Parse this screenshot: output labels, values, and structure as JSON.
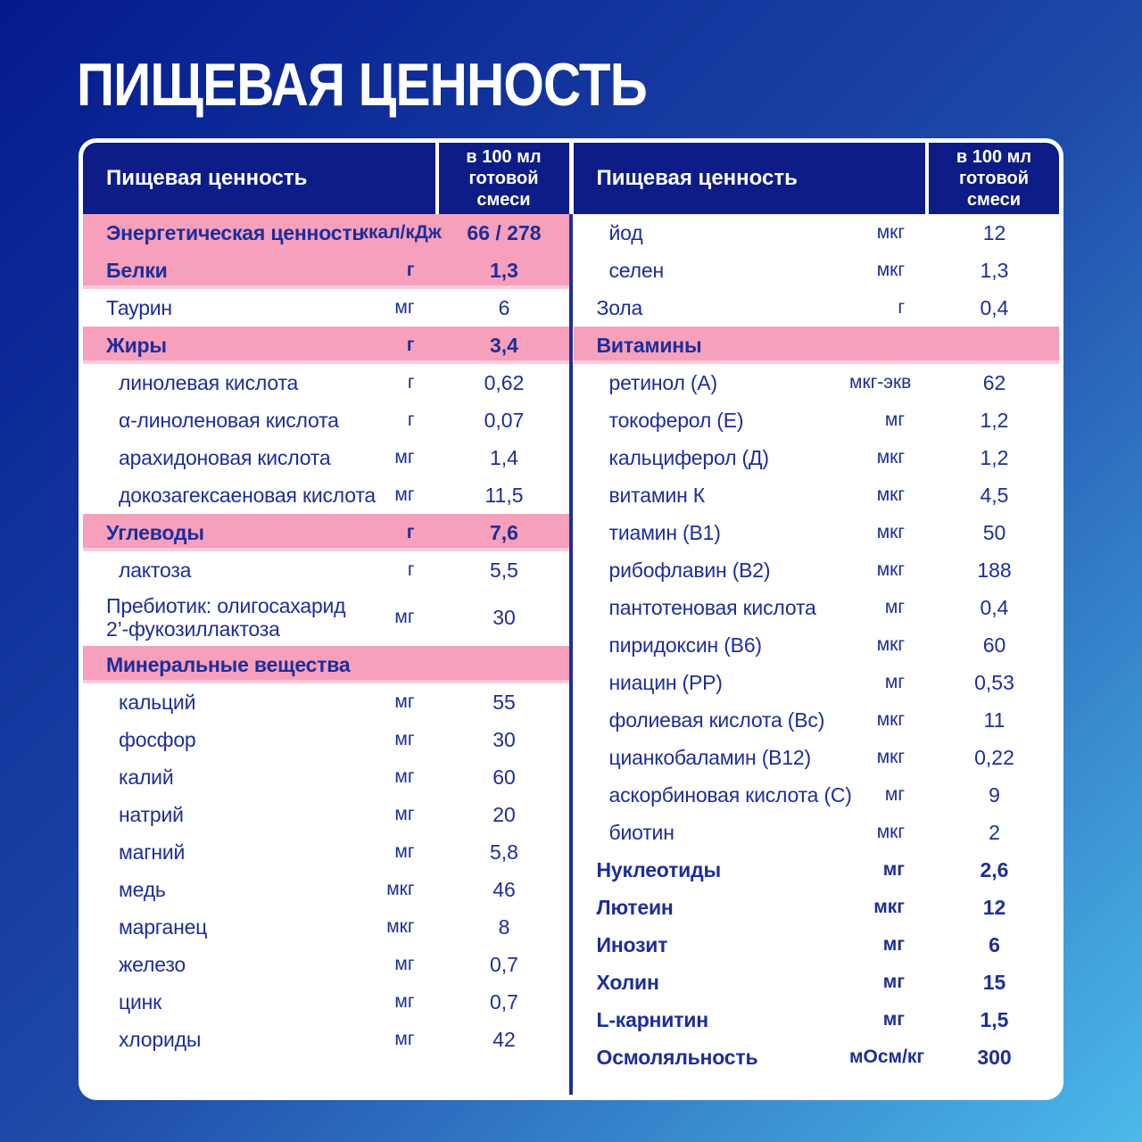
{
  "page_title": "ПИЩЕВАЯ ЦЕННОСТЬ",
  "colors": {
    "bg_dark": "#041a8e",
    "bg_mid": "#1e4aa9",
    "bg_light": "#4cb9ea",
    "header_navy": "#0d1c86",
    "ink": "#1d2e99",
    "pink": "#f6a0bb",
    "pink_light": "#fbcbdb",
    "white": "#ffffff"
  },
  "table": {
    "header_label": "Пищевая ценность",
    "header_value_label": "в 100 мл готовой смеси",
    "left_rows": [
      {
        "label": "Энергетическая ценность",
        "unit": "ккал/кДж",
        "value": "66 / 278",
        "style": "section"
      },
      {
        "label": "Белки",
        "unit": "г",
        "value": "1,3",
        "style": "section"
      },
      {
        "label": "Таурин",
        "unit": "мг",
        "value": "6"
      },
      {
        "label": "Жиры",
        "unit": "г",
        "value": "3,4",
        "style": "section"
      },
      {
        "label": "линолевая кислота",
        "unit": "г",
        "value": "0,62",
        "indent": true
      },
      {
        "label": "α-линоленовая кислота",
        "unit": "г",
        "value": "0,07",
        "indent": true
      },
      {
        "label": "арахидоновая кислота",
        "unit": "мг",
        "value": "1,4",
        "indent": true
      },
      {
        "label": "докозагексаеновая кислота",
        "unit": "мг",
        "value": "11,5",
        "indent": true
      },
      {
        "label": "Углеводы",
        "unit": "г",
        "value": "7,6",
        "style": "section"
      },
      {
        "label": "лактоза",
        "unit": "г",
        "value": "5,5",
        "indent": true
      },
      {
        "label": "Пребиотик: олигосахарид\n2’-фукозиллактоза",
        "unit": "мг",
        "value": "30"
      },
      {
        "label": "Минеральные вещества",
        "unit": "",
        "value": "",
        "style": "section"
      },
      {
        "label": "кальций",
        "unit": "мг",
        "value": "55",
        "indent": true
      },
      {
        "label": "фосфор",
        "unit": "мг",
        "value": "30",
        "indent": true
      },
      {
        "label": "калий",
        "unit": "мг",
        "value": "60",
        "indent": true
      },
      {
        "label": "натрий",
        "unit": "мг",
        "value": "20",
        "indent": true
      },
      {
        "label": "магний",
        "unit": "мг",
        "value": "5,8",
        "indent": true
      },
      {
        "label": "медь",
        "unit": "мкг",
        "value": "46",
        "indent": true
      },
      {
        "label": "марганец",
        "unit": "мкг",
        "value": "8",
        "indent": true
      },
      {
        "label": "железо",
        "unit": "мг",
        "value": "0,7",
        "indent": true
      },
      {
        "label": "цинк",
        "unit": "мг",
        "value": "0,7",
        "indent": true
      },
      {
        "label": "хлориды",
        "unit": "мг",
        "value": "42",
        "indent": true
      }
    ],
    "right_rows": [
      {
        "label": "йод",
        "unit": "мкг",
        "value": "12",
        "indent": true
      },
      {
        "label": "селен",
        "unit": "мкг",
        "value": "1,3",
        "indent": true
      },
      {
        "label": "Зола",
        "unit": "г",
        "value": "0,4"
      },
      {
        "label": "Витамины",
        "unit": "",
        "value": "",
        "style": "section"
      },
      {
        "label": "ретинол (А)",
        "unit": "мкг-экв",
        "value": "62",
        "indent": true
      },
      {
        "label": "токоферол (Е)",
        "unit": "мг",
        "value": "1,2",
        "indent": true
      },
      {
        "label": "кальциферол (Д)",
        "unit": "мкг",
        "value": "1,2",
        "indent": true
      },
      {
        "label": "витамин К",
        "unit": "мкг",
        "value": "4,5",
        "indent": true
      },
      {
        "label": "тиамин (В1)",
        "unit": "мкг",
        "value": "50",
        "indent": true
      },
      {
        "label": "рибофлавин (В2)",
        "unit": "мкг",
        "value": "188",
        "indent": true
      },
      {
        "label": "пантотеновая кислота",
        "unit": "мг",
        "value": "0,4",
        "indent": true
      },
      {
        "label": "пиридоксин (В6)",
        "unit": "мкг",
        "value": "60",
        "indent": true
      },
      {
        "label": "ниацин (РР)",
        "unit": "мг",
        "value": "0,53",
        "indent": true
      },
      {
        "label": "фолиевая кислота (Вс)",
        "unit": "мкг",
        "value": "11",
        "indent": true
      },
      {
        "label": "цианкобаламин (В12)",
        "unit": "мкг",
        "value": "0,22",
        "indent": true
      },
      {
        "label": "аскорбиновая кислота (С)",
        "unit": "мг",
        "value": "9",
        "indent": true
      },
      {
        "label": "биотин",
        "unit": "мкг",
        "value": "2",
        "indent": true
      },
      {
        "label": "Нуклеотиды",
        "unit": "мг",
        "value": "2,6",
        "style": "bold"
      },
      {
        "label": "Лютеин",
        "unit": "мкг",
        "value": "12",
        "style": "bold"
      },
      {
        "label": "Инозит",
        "unit": "мг",
        "value": "6",
        "style": "bold"
      },
      {
        "label": "Холин",
        "unit": "мг",
        "value": "15",
        "style": "bold"
      },
      {
        "label": "L-карнитин",
        "unit": "мг",
        "value": "1,5",
        "style": "bold"
      },
      {
        "label": "Осмоляльность",
        "unit": "мОсм/кг",
        "value": "300",
        "style": "bold"
      }
    ]
  }
}
